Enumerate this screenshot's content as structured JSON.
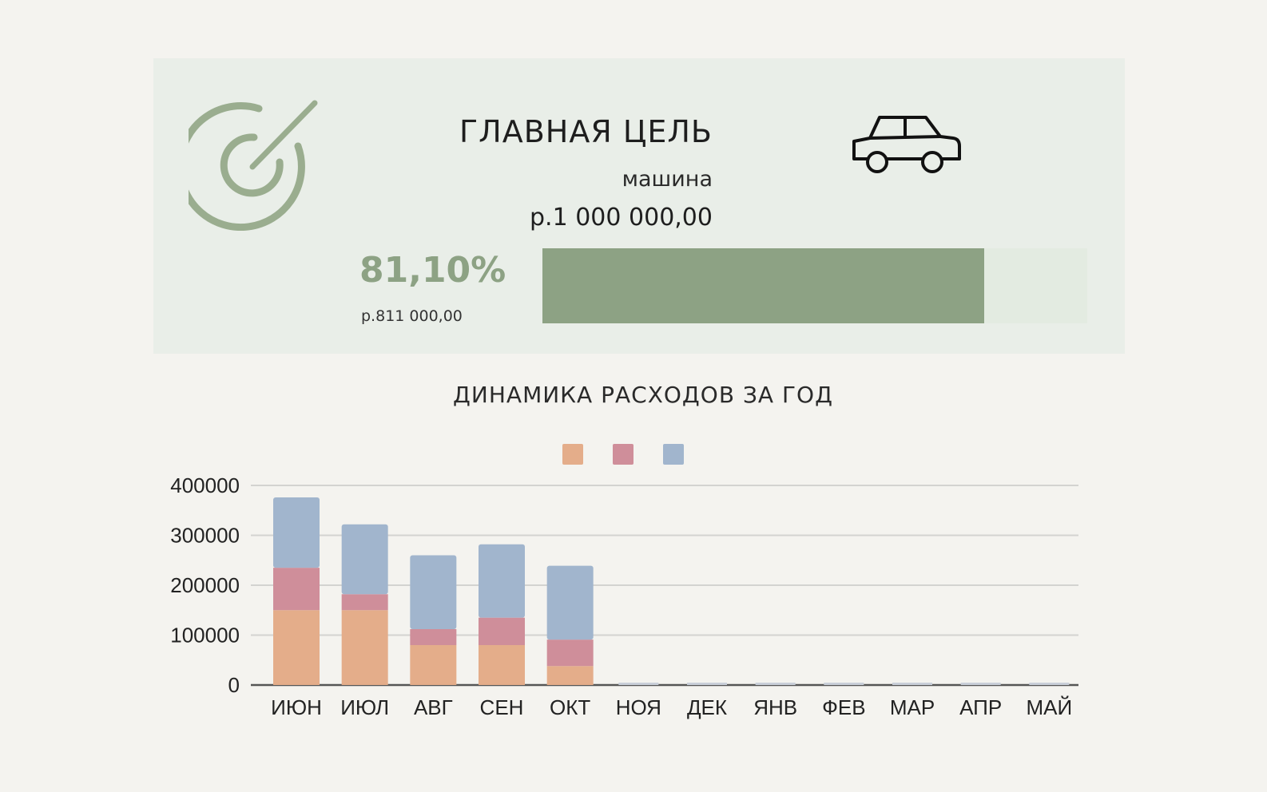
{
  "goal": {
    "title": "ГЛАВНАЯ ЦЕЛЬ",
    "name": "машина",
    "amount": "р.1 000 000,00",
    "percent_label": "81,10%",
    "saved_label": "р.811 000,00",
    "progress": 0.811,
    "icons": [
      "target-icon",
      "car-icon"
    ],
    "accent_color": "#8da284"
  },
  "chart_data": {
    "type": "bar",
    "stacked": true,
    "title": "ДИНАМИКА РАСХОДОВ ЗА ГОД",
    "categories": [
      "ИЮН",
      "ИЮЛ",
      "АВГ",
      "СЕН",
      "ОКТ",
      "НОЯ",
      "ДЕК",
      "ЯНВ",
      "ФЕВ",
      "МАР",
      "АПР",
      "МАЙ"
    ],
    "series": [
      {
        "color": "#e4ad8a",
        "values": [
          150000,
          150000,
          80000,
          80000,
          38000,
          0,
          0,
          0,
          0,
          0,
          0,
          0
        ]
      },
      {
        "color": "#cf8e9a",
        "values": [
          85000,
          32000,
          32000,
          55000,
          53000,
          0,
          0,
          0,
          0,
          0,
          0,
          0
        ]
      },
      {
        "color": "#a1b5cd",
        "values": [
          141000,
          140000,
          148000,
          147000,
          148000,
          0,
          0,
          0,
          0,
          0,
          0,
          0
        ]
      }
    ],
    "yticks": [
      0,
      100000,
      200000,
      300000,
      400000
    ],
    "ylim": [
      0,
      400000
    ],
    "grid": true,
    "legend": "top-center",
    "xlabel": "",
    "ylabel": ""
  }
}
